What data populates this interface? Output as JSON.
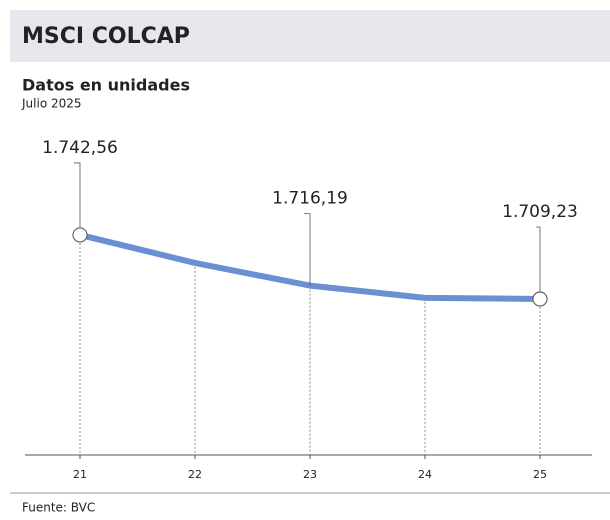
{
  "chart_data": {
    "type": "line",
    "title": "MSCI COLCAP",
    "subtitle": "Datos en unidades",
    "period": "Julio 2025",
    "source": "Fuente: BVC",
    "categories": [
      "21",
      "22",
      "23",
      "24",
      "25"
    ],
    "series": [
      {
        "name": "MSCI COLCAP",
        "color": "#6b8fd3",
        "values": [
          1742.56,
          1728.0,
          1716.19,
          1709.8,
          1709.23
        ],
        "value_labels": [
          "1.742,56",
          null,
          "1.716,19",
          null,
          "1.709,23"
        ]
      }
    ],
    "ylim": [
      1628,
      1792
    ]
  }
}
